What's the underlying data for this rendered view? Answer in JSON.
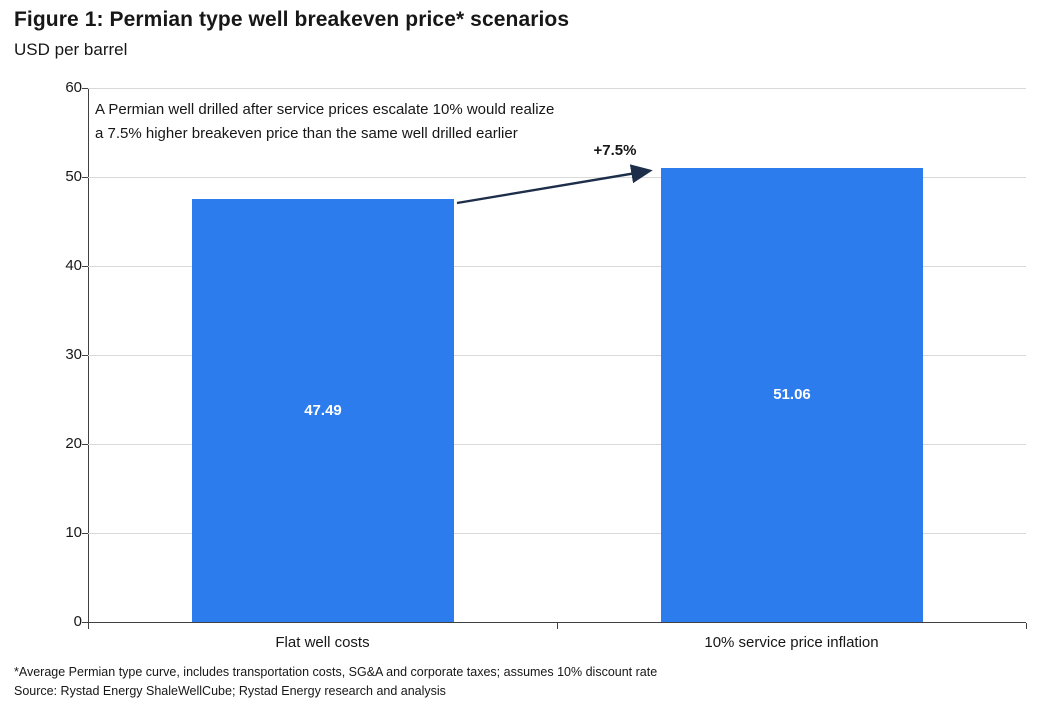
{
  "title": "Figure 1: Permian type well breakeven price* scenarios",
  "subtitle": "USD per barrel",
  "annotation": {
    "line1": "A Permian well drilled after service prices escalate 10% would realize",
    "line2": "a 7.5% higher breakeven price than the same well drilled earlier",
    "arrow_label": "+7.5%"
  },
  "footnotes": {
    "note": "*Average Permian type curve, includes transportation costs, SG&A and corporate taxes; assumes 10% discount rate",
    "source": "Source: Rystad Energy ShaleWellCube; Rystad Energy research and analysis"
  },
  "colors": {
    "bar": "#2d7cee",
    "bar_label": "#ffffff",
    "arrow": "#1c2e4a",
    "gridline": "#d9d9d9",
    "axis": "#404040"
  },
  "chart_data": {
    "type": "bar",
    "categories": [
      "Flat well costs",
      "10% service price inflation"
    ],
    "values": [
      47.49,
      51.06
    ],
    "value_labels": [
      "47.49",
      "51.06"
    ],
    "title": "Figure 1: Permian type well breakeven price* scenarios",
    "xlabel": "",
    "ylabel": "USD per barrel",
    "ylim": [
      0,
      60
    ],
    "ytick_step": 10,
    "grid": "horizontal",
    "legend": "none",
    "annotation_text": "A Permian well drilled after service prices escalate 10% would realize a 7.5% higher breakeven price than the same well drilled earlier",
    "annotation_arrow_label": "+7.5%"
  }
}
